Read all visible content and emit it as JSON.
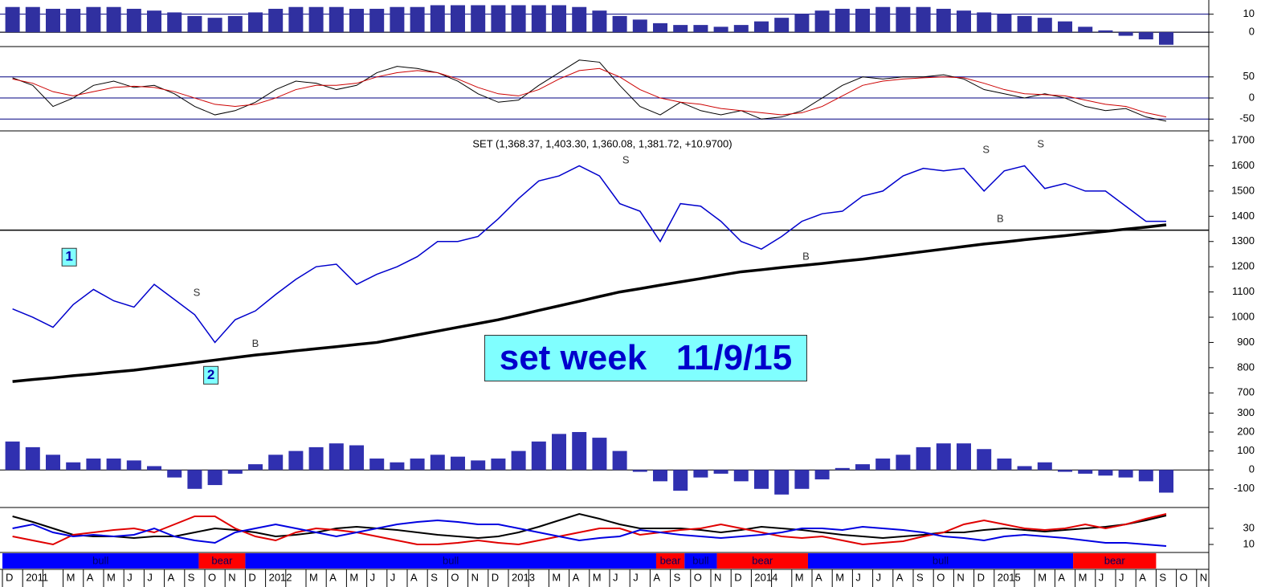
{
  "chart_data": [
    {
      "type": "bar",
      "color": "#3030a0",
      "grid": true,
      "ylim": [
        -8,
        17
      ],
      "yticks": [
        10,
        0
      ],
      "values": [
        14,
        14,
        13,
        13,
        14,
        14,
        13,
        12,
        11,
        9,
        8,
        9,
        11,
        13,
        14,
        14,
        14,
        13,
        13,
        14,
        14,
        15,
        15,
        15,
        15,
        15,
        15,
        15,
        14,
        12,
        9,
        7,
        5,
        4,
        4,
        3,
        4,
        6,
        8,
        10,
        12,
        13,
        13,
        14,
        14,
        14,
        13,
        12,
        11,
        10,
        9,
        8,
        6,
        3,
        1,
        -2,
        -4,
        -7,
        null,
        null
      ]
    },
    {
      "type": "line",
      "grid": true,
      "ylim": [
        -78,
        122
      ],
      "yticks": [
        50,
        0,
        -50
      ],
      "series": [
        {
          "color": "#000000",
          "values": [
            48,
            30,
            -20,
            0,
            30,
            40,
            25,
            30,
            10,
            -20,
            -40,
            -30,
            -10,
            20,
            40,
            35,
            20,
            30,
            60,
            75,
            70,
            60,
            40,
            10,
            -10,
            -5,
            30,
            60,
            90,
            85,
            30,
            -20,
            -40,
            -10,
            -30,
            -40,
            -30,
            -50,
            -45,
            -30,
            0,
            30,
            50,
            45,
            50,
            50,
            55,
            45,
            20,
            10,
            0,
            10,
            0,
            -20,
            -30,
            -25,
            -45,
            -55,
            null,
            null
          ]
        },
        {
          "color": "#cc0000",
          "values": [
            45,
            35,
            15,
            5,
            15,
            25,
            28,
            25,
            15,
            0,
            -15,
            -20,
            -15,
            0,
            20,
            30,
            30,
            35,
            50,
            60,
            65,
            60,
            45,
            25,
            10,
            5,
            20,
            45,
            65,
            70,
            50,
            20,
            0,
            -10,
            -15,
            -25,
            -30,
            -35,
            -40,
            -35,
            -20,
            5,
            30,
            40,
            45,
            48,
            50,
            48,
            35,
            20,
            10,
            8,
            5,
            -5,
            -15,
            -20,
            -35,
            -45,
            null,
            null
          ]
        }
      ]
    },
    {
      "type": "line",
      "title": "SET (1,368.37, 1,403.30, 1,360.08, 1,381.72, +10.9700)",
      "annotation": "set week   11/9/15",
      "grid": false,
      "ylim": [
        650,
        1732
      ],
      "yticks": [
        1700,
        1600,
        1500,
        1400,
        1300,
        1200,
        1100,
        1000,
        900,
        800,
        700
      ],
      "hline": 1345,
      "categories": [
        "D",
        "2011",
        null,
        "M",
        "A",
        "M",
        "J",
        "J",
        "A",
        "S",
        "O",
        "N",
        "D",
        "2012",
        null,
        "M",
        "A",
        "M",
        "J",
        "J",
        "A",
        "S",
        "O",
        "N",
        "D",
        "2013",
        null,
        "M",
        "A",
        "M",
        "J",
        "J",
        "A",
        "S",
        "O",
        "N",
        "D",
        "2014",
        null,
        "M",
        "A",
        "M",
        "J",
        "J",
        "A",
        "S",
        "O",
        "N",
        "D",
        "2015",
        null,
        "M",
        "A",
        "M",
        "J",
        "J",
        "A",
        "S",
        "O",
        "N"
      ],
      "series": [
        {
          "color": "#0000cc",
          "width": 1.5,
          "values": [
            1033,
            1000,
            960,
            1050,
            1110,
            1065,
            1040,
            1130,
            1070,
            1010,
            900,
            990,
            1025,
            1090,
            1150,
            1200,
            1210,
            1130,
            1170,
            1200,
            1240,
            1300,
            1300,
            1320,
            1390,
            1470,
            1540,
            1560,
            1600,
            1560,
            1450,
            1420,
            1300,
            1450,
            1440,
            1380,
            1300,
            1270,
            1320,
            1380,
            1410,
            1420,
            1480,
            1500,
            1560,
            1590,
            1580,
            1590,
            1500,
            1580,
            1600,
            1510,
            1530,
            1500,
            1500,
            1440,
            1380,
            1380,
            null,
            null
          ]
        },
        {
          "color": "#000000",
          "width": 3.5,
          "values": [
            745,
            753,
            760,
            768,
            775,
            783,
            790,
            800,
            810,
            820,
            830,
            840,
            850,
            858,
            867,
            875,
            883,
            892,
            900,
            915,
            930,
            945,
            960,
            975,
            990,
            1008,
            1027,
            1045,
            1063,
            1082,
            1100,
            1113,
            1127,
            1140,
            1153,
            1167,
            1180,
            1188,
            1197,
            1205,
            1213,
            1222,
            1230,
            1240,
            1250,
            1260,
            1270,
            1280,
            1290,
            1298,
            1307,
            1315,
            1323,
            1332,
            1340,
            1349,
            1357,
            1366,
            null,
            null
          ]
        }
      ],
      "annotations": [
        {
          "text": "S",
          "x": 9.6,
          "y": 1095
        },
        {
          "text": "B",
          "x": 12.5,
          "y": 894
        },
        {
          "text": "S",
          "x": 30.8,
          "y": 1620
        },
        {
          "text": "B",
          "x": 39.7,
          "y": 1238
        },
        {
          "text": "S",
          "x": 48.6,
          "y": 1662
        },
        {
          "text": "S",
          "x": 51.3,
          "y": 1684
        },
        {
          "text": "B",
          "x": 49.3,
          "y": 1388
        },
        {
          "text": "1",
          "x": 3.3,
          "y": 1238,
          "boxed": true
        },
        {
          "text": "2",
          "x": 10.3,
          "y": 770,
          "boxed": true
        }
      ],
      "regimes": [
        {
          "label": "bull",
          "start": 0,
          "end": 9.7,
          "color": "#0000ff"
        },
        {
          "label": "bear",
          "start": 9.7,
          "end": 12,
          "color": "#ff0000"
        },
        {
          "label": "bull",
          "start": 12,
          "end": 32.3,
          "color": "#0000ff"
        },
        {
          "label": "bear",
          "start": 32.3,
          "end": 33.7,
          "color": "#ff0000"
        },
        {
          "label": "bull",
          "start": 33.7,
          "end": 35.3,
          "color": "#0000ff"
        },
        {
          "label": "bear",
          "start": 35.3,
          "end": 39.8,
          "color": "#ff0000"
        },
        {
          "label": "bull",
          "start": 39.8,
          "end": 52.9,
          "color": "#0000ff"
        },
        {
          "label": "bear",
          "start": 52.9,
          "end": 57,
          "color": "#ff0000"
        }
      ]
    },
    {
      "type": "bar",
      "color": "#3030b0",
      "grid": false,
      "ylim": [
        -190,
        340
      ],
      "yticks": [
        300,
        200,
        100,
        0,
        -100
      ],
      "values": [
        150,
        120,
        80,
        40,
        60,
        60,
        50,
        20,
        -40,
        -100,
        -80,
        -20,
        30,
        80,
        100,
        120,
        140,
        130,
        60,
        40,
        60,
        80,
        70,
        50,
        60,
        100,
        150,
        190,
        200,
        170,
        100,
        -10,
        -60,
        -110,
        -40,
        -20,
        -60,
        -100,
        -130,
        -100,
        -50,
        10,
        30,
        60,
        80,
        120,
        140,
        140,
        110,
        60,
        20,
        40,
        -10,
        -20,
        -30,
        -40,
        -60,
        -120,
        null,
        null
      ]
    },
    {
      "type": "line",
      "grid": false,
      "ylim": [
        0,
        56
      ],
      "yticks": [
        30,
        10
      ],
      "series": [
        {
          "color": "#000000",
          "width": 2,
          "values": [
            45,
            38,
            30,
            22,
            20,
            20,
            18,
            20,
            20,
            25,
            30,
            28,
            25,
            20,
            22,
            25,
            30,
            32,
            30,
            28,
            25,
            22,
            20,
            18,
            20,
            25,
            32,
            40,
            48,
            42,
            35,
            30,
            30,
            30,
            28,
            25,
            28,
            32,
            30,
            28,
            25,
            22,
            20,
            18,
            20,
            22,
            25,
            25,
            28,
            30,
            28,
            26,
            28,
            30,
            32,
            35,
            40,
            46,
            null,
            null
          ]
        },
        {
          "color": "#e00000",
          "width": 2,
          "values": [
            20,
            15,
            10,
            22,
            25,
            28,
            30,
            25,
            35,
            45,
            45,
            30,
            20,
            15,
            25,
            30,
            28,
            25,
            20,
            15,
            10,
            10,
            12,
            15,
            12,
            10,
            15,
            20,
            25,
            30,
            30,
            22,
            25,
            28,
            30,
            35,
            30,
            25,
            20,
            18,
            20,
            15,
            10,
            12,
            14,
            20,
            25,
            35,
            40,
            35,
            30,
            28,
            30,
            35,
            30,
            35,
            42,
            48,
            null,
            null
          ]
        },
        {
          "color": "#0000e0",
          "width": 2,
          "values": [
            30,
            35,
            25,
            20,
            22,
            20,
            22,
            30,
            20,
            15,
            12,
            25,
            30,
            35,
            30,
            25,
            20,
            25,
            30,
            35,
            38,
            40,
            38,
            35,
            35,
            30,
            25,
            20,
            15,
            18,
            20,
            28,
            25,
            22,
            20,
            18,
            20,
            22,
            25,
            30,
            30,
            28,
            32,
            30,
            28,
            25,
            20,
            18,
            15,
            20,
            22,
            20,
            18,
            15,
            12,
            12,
            10,
            8,
            null,
            null
          ]
        }
      ]
    }
  ]
}
